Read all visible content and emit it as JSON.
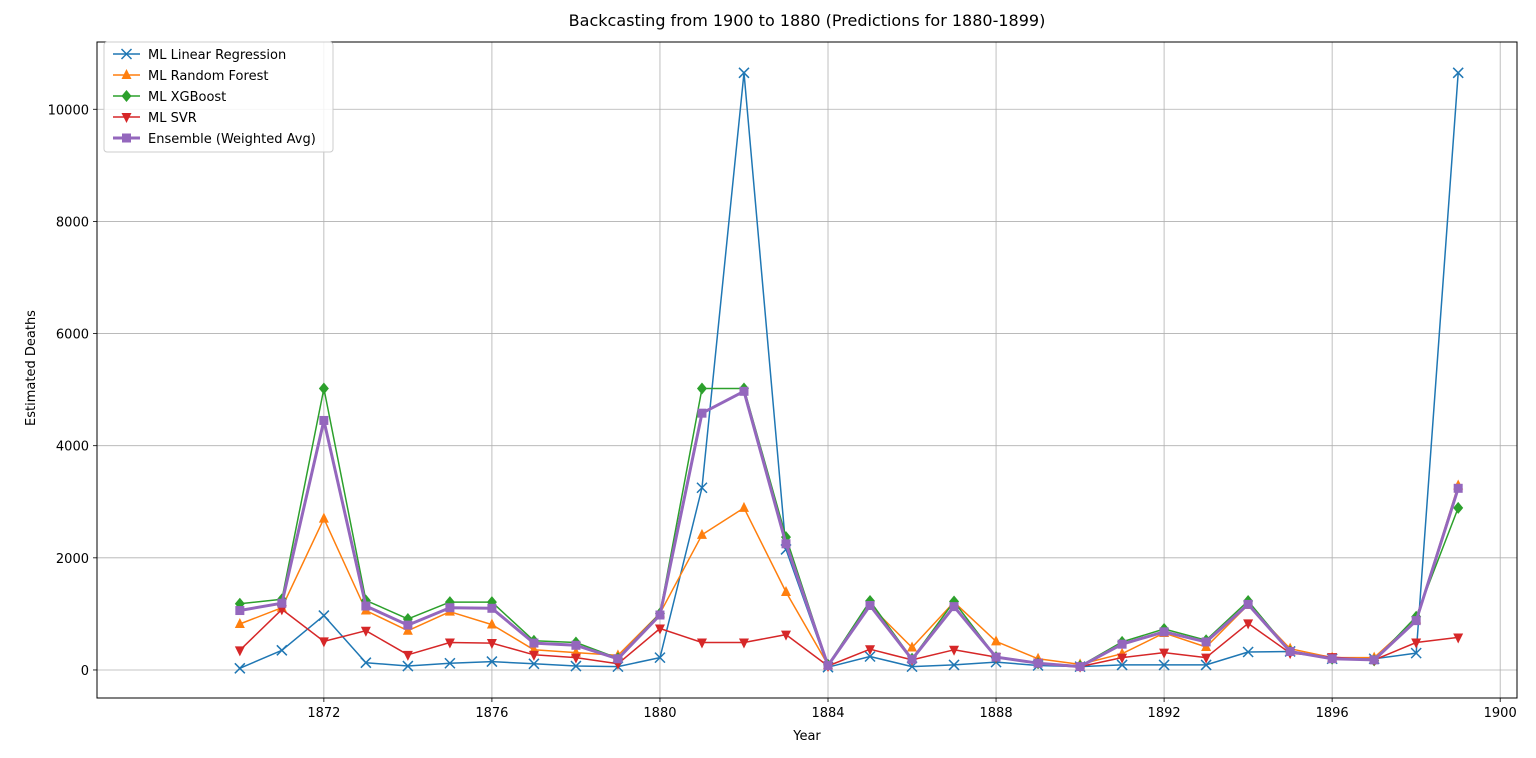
{
  "chart_data": {
    "type": "line",
    "title": "Backcasting from 1900 to 1880 (Predictions for 1880-1899)",
    "xlabel": "Year",
    "ylabel": "Estimated Deaths",
    "xlim": [
      1866.6,
      1900.4
    ],
    "ylim": [
      -500,
      11200
    ],
    "xticks": [
      1872,
      1876,
      1880,
      1884,
      1888,
      1892,
      1896,
      1900
    ],
    "yticks": [
      0,
      2000,
      4000,
      6000,
      8000,
      10000
    ],
    "grid": true,
    "legend_position": "top-left",
    "x": [
      1870,
      1871,
      1872,
      1873,
      1874,
      1875,
      1876,
      1877,
      1878,
      1879,
      1880,
      1881,
      1882,
      1883,
      1884,
      1885,
      1886,
      1887,
      1888,
      1889,
      1890,
      1891,
      1892,
      1893,
      1894,
      1895,
      1896,
      1897,
      1898,
      1899
    ],
    "series": [
      {
        "name": "ML Linear Regression",
        "color": "#1f77b4",
        "marker": "x",
        "linewidth": 1.5,
        "values": [
          30,
          350,
          970,
          130,
          70,
          120,
          150,
          110,
          70,
          60,
          220,
          3250,
          10650,
          2150,
          50,
          240,
          60,
          90,
          140,
          80,
          60,
          90,
          90,
          90,
          320,
          330,
          200,
          200,
          300,
          10650
        ]
      },
      {
        "name": "ML Random Forest",
        "color": "#ff7f0e",
        "marker": "triangle-up",
        "linewidth": 1.5,
        "values": [
          820,
          1110,
          2700,
          1060,
          700,
          1040,
          810,
          360,
          310,
          260,
          1010,
          2410,
          2890,
          1390,
          90,
          1150,
          400,
          1210,
          510,
          200,
          100,
          290,
          660,
          410,
          1160,
          380,
          220,
          220,
          900,
          3290
        ]
      },
      {
        "name": "ML XGBoost",
        "color": "#2ca02c",
        "marker": "diamond",
        "linewidth": 1.5,
        "values": [
          1180,
          1260,
          5020,
          1240,
          910,
          1210,
          1210,
          520,
          490,
          210,
          1010,
          5020,
          5020,
          2370,
          90,
          1230,
          200,
          1220,
          230,
          120,
          70,
          500,
          730,
          530,
          1230,
          330,
          200,
          170,
          950,
          2890
        ]
      },
      {
        "name": "ML SVR",
        "color": "#d62728",
        "marker": "triangle-down",
        "linewidth": 1.5,
        "values": [
          350,
          1080,
          510,
          700,
          270,
          490,
          480,
          270,
          220,
          110,
          740,
          490,
          490,
          630,
          70,
          370,
          180,
          360,
          230,
          130,
          60,
          220,
          310,
          220,
          830,
          300,
          230,
          180,
          490,
          580
        ]
      },
      {
        "name": "Ensemble (Weighted Avg)",
        "color": "#9467bd",
        "marker": "square",
        "linewidth": 3,
        "values": [
          1060,
          1190,
          4450,
          1140,
          800,
          1110,
          1100,
          480,
          440,
          200,
          980,
          4580,
          4970,
          2250,
          80,
          1150,
          190,
          1130,
          230,
          120,
          60,
          460,
          680,
          500,
          1170,
          330,
          200,
          180,
          880,
          3240
        ]
      }
    ]
  }
}
